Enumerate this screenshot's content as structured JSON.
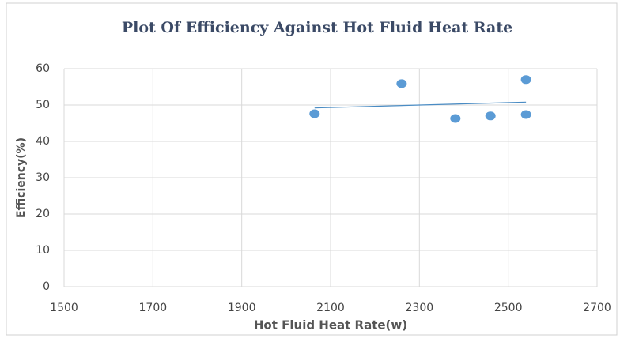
{
  "chart_data": {
    "type": "scatter",
    "title": "Plot Of Efficiency Against Hot Fluid Heat Rate",
    "x_label": "Hot Fluid Heat Rate(w)",
    "y_label": "Efficiency(%)",
    "series": [
      {
        "color": "#5b9bd5",
        "x": [
          2064,
          2260,
          2381,
          2460,
          2540,
          2540
        ],
        "values": [
          47.6,
          55.9,
          46.3,
          47.0,
          57.0,
          47.4
        ]
      }
    ],
    "trendline": {
      "color": "#4a8cc4",
      "x": [
        2064,
        2540
      ],
      "values": [
        49.2,
        50.8
      ]
    },
    "xlim": [
      1500,
      2700
    ],
    "xticks": [
      1500,
      1700,
      1900,
      2100,
      2300,
      2500,
      2700
    ],
    "ylim": [
      0,
      60
    ],
    "yticks": [
      0,
      10,
      20,
      30,
      40,
      50,
      60
    ],
    "grid": true
  }
}
